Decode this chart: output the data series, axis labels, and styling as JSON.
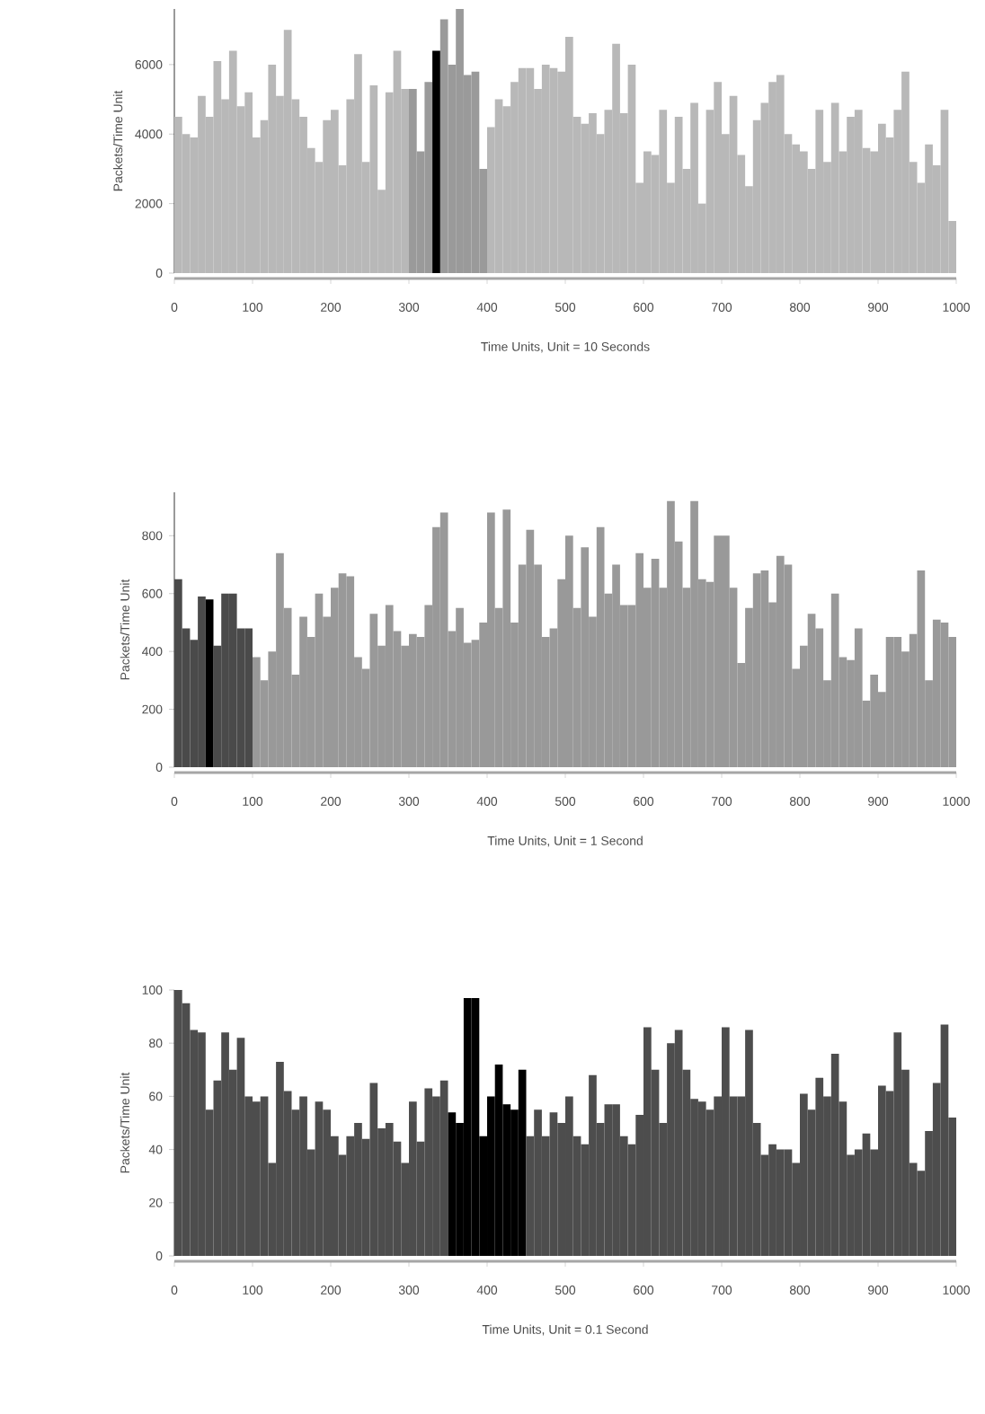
{
  "chart_data": [
    {
      "type": "bar",
      "xlabel": "Time Units, Unit = 10 Seconds",
      "ylabel": "Packets/Time Unit",
      "xlim": [
        0,
        1000
      ],
      "xticks": [
        0,
        100,
        200,
        300,
        400,
        500,
        600,
        700,
        800,
        900,
        1000
      ],
      "ylim": [
        0,
        7600
      ],
      "yticks": [
        0,
        2000,
        4000,
        6000
      ],
      "series": [
        {
          "color": "#b8b8b8",
          "x": [
            5,
            15,
            25,
            35,
            45,
            55,
            65,
            75,
            85,
            95,
            105,
            115,
            125,
            135,
            145,
            155,
            165,
            175,
            185,
            195,
            205,
            215,
            225,
            235,
            245,
            255,
            265,
            275,
            285,
            295
          ],
          "values": [
            4500,
            4000,
            3900,
            5100,
            4500,
            6100,
            5000,
            6400,
            4800,
            5200,
            3900,
            4400,
            6000,
            5100,
            7000,
            5000,
            4500,
            3600,
            3200,
            4400,
            4700,
            3100,
            5000,
            6300,
            3200,
            5400,
            2400,
            5200,
            6400,
            5300
          ]
        },
        {
          "color": "#9a9a9a",
          "x": [
            305,
            315,
            325,
            345,
            355,
            365,
            375,
            385,
            395
          ],
          "values": [
            5300,
            3500,
            5500,
            7300,
            6000,
            7600,
            5700,
            5800,
            3000
          ]
        },
        {
          "color": "#000000",
          "x": [
            335
          ],
          "values": [
            6400
          ]
        },
        {
          "color": "#b8b8b8",
          "x": [
            405,
            415,
            425,
            435,
            445,
            455,
            465,
            475,
            485,
            495,
            505,
            515,
            525,
            535,
            545,
            555,
            565,
            575,
            585,
            595,
            605,
            615,
            625,
            635,
            645,
            655,
            665,
            675,
            685,
            695,
            705,
            715,
            725,
            735,
            745,
            755,
            765,
            775,
            785,
            795,
            805,
            815,
            825,
            835,
            845,
            855,
            865,
            875,
            885,
            895,
            905,
            915,
            925,
            935,
            945,
            955,
            965,
            975,
            985,
            995
          ],
          "values": [
            4200,
            5000,
            4800,
            5500,
            5900,
            5900,
            5300,
            6000,
            5900,
            5800,
            6800,
            4500,
            4300,
            4600,
            4000,
            4700,
            6600,
            4600,
            6000,
            2600,
            3500,
            3400,
            4700,
            2600,
            4500,
            3000,
            4900,
            2000,
            4700,
            5500,
            4000,
            5100,
            3400,
            2500,
            4400,
            4900,
            5500,
            5700,
            4000,
            3700,
            3500,
            3000,
            4700,
            3200,
            4900,
            3500,
            4500,
            4700,
            3600,
            3500,
            4300,
            3900,
            4700,
            5800,
            3200,
            2600,
            3700,
            3100,
            4700,
            1500
          ]
        }
      ]
    },
    {
      "type": "bar",
      "xlabel": "Time Units, Unit = 1 Second",
      "ylabel": "Packets/Time Unit",
      "xlim": [
        0,
        1000
      ],
      "xticks": [
        0,
        100,
        200,
        300,
        400,
        500,
        600,
        700,
        800,
        900,
        1000
      ],
      "ylim": [
        0,
        950
      ],
      "yticks": [
        0,
        200,
        400,
        600,
        800
      ],
      "series": [
        {
          "color": "#4a4a4a",
          "x": [
            5,
            15,
            25,
            35,
            55,
            65,
            75,
            85,
            95
          ],
          "values": [
            650,
            480,
            440,
            590,
            420,
            600,
            600,
            480,
            480
          ]
        },
        {
          "color": "#000000",
          "x": [
            45
          ],
          "values": [
            580
          ]
        },
        {
          "color": "#999999",
          "x": [
            105,
            115,
            125,
            135,
            145,
            155,
            165,
            175,
            185,
            195,
            205,
            215,
            225,
            235,
            245,
            255,
            265,
            275,
            285,
            295,
            305,
            315,
            325,
            335,
            345,
            355,
            365,
            375,
            385,
            395,
            405,
            415,
            425,
            435,
            445,
            455,
            465,
            475,
            485,
            495,
            505,
            515,
            525,
            535,
            545,
            555,
            565,
            575,
            585,
            595,
            605,
            615,
            625,
            635,
            645,
            655,
            665,
            675,
            685,
            695,
            705,
            715,
            725,
            735,
            745,
            755,
            765,
            775,
            785,
            795,
            805,
            815,
            825,
            835,
            845,
            855,
            865,
            875,
            885,
            895,
            905,
            915,
            925,
            935,
            945,
            955,
            965,
            975,
            985,
            995
          ],
          "values": [
            380,
            300,
            400,
            740,
            550,
            320,
            520,
            450,
            600,
            520,
            620,
            670,
            660,
            380,
            340,
            530,
            420,
            560,
            470,
            420,
            460,
            450,
            560,
            830,
            880,
            470,
            550,
            430,
            440,
            500,
            880,
            550,
            890,
            500,
            700,
            820,
            700,
            450,
            480,
            650,
            800,
            550,
            760,
            520,
            830,
            600,
            700,
            560,
            560,
            740,
            620,
            720,
            620,
            920,
            780,
            620,
            920,
            650,
            640,
            800,
            800,
            620,
            360,
            550,
            670,
            680,
            570,
            730,
            700,
            340,
            420,
            530,
            480,
            300,
            600,
            380,
            370,
            480,
            230,
            320,
            260,
            450,
            450,
            400,
            460,
            680,
            300,
            510,
            500,
            450
          ]
        }
      ]
    },
    {
      "type": "bar",
      "xlabel": "Time Units, Unit = 0.1 Second",
      "ylabel": "Packets/Time Unit",
      "xlim": [
        0,
        1000
      ],
      "xticks": [
        0,
        100,
        200,
        300,
        400,
        500,
        600,
        700,
        800,
        900,
        1000
      ],
      "ylim": [
        0,
        100
      ],
      "yticks": [
        0,
        20,
        40,
        60,
        80,
        100
      ],
      "series": [
        {
          "color": "#4d4d4d",
          "x": [
            5,
            15,
            25,
            35,
            45,
            55,
            65,
            75,
            85,
            95,
            105,
            115,
            125,
            135,
            145,
            155,
            165,
            175,
            185,
            195,
            205,
            215,
            225,
            235,
            245,
            255,
            265,
            275,
            285,
            295,
            305,
            315,
            325,
            335,
            345
          ],
          "values": [
            100,
            95,
            85,
            84,
            55,
            66,
            84,
            70,
            82,
            60,
            58,
            60,
            35,
            73,
            62,
            55,
            60,
            40,
            58,
            55,
            45,
            38,
            45,
            50,
            44,
            65,
            48,
            50,
            43,
            35,
            58,
            43,
            63,
            60,
            66
          ]
        },
        {
          "color": "#000000",
          "x": [
            355,
            365,
            375,
            385,
            395,
            405,
            415,
            425,
            435,
            445
          ],
          "values": [
            54,
            50,
            97,
            97,
            45,
            60,
            72,
            57,
            55,
            70
          ]
        },
        {
          "color": "#4d4d4d",
          "x": [
            455,
            465,
            475,
            485,
            495,
            505,
            515,
            525,
            535,
            545,
            555,
            565,
            575,
            585,
            595,
            605,
            615,
            625,
            635,
            645,
            655,
            665,
            675,
            685,
            695,
            705,
            715,
            725,
            735,
            745,
            755,
            765,
            775,
            785,
            795,
            805,
            815,
            825,
            835,
            845,
            855,
            865,
            875,
            885,
            895,
            905,
            915,
            925,
            935,
            945,
            955,
            965,
            975,
            985,
            995
          ],
          "values": [
            45,
            55,
            45,
            54,
            50,
            60,
            45,
            42,
            68,
            50,
            57,
            57,
            45,
            42,
            53,
            86,
            70,
            50,
            80,
            85,
            70,
            59,
            58,
            55,
            60,
            86,
            60,
            60,
            85,
            50,
            38,
            42,
            40,
            40,
            35,
            61,
            55,
            67,
            60,
            76,
            58,
            38,
            40,
            46,
            40,
            64,
            62,
            84,
            70,
            35,
            32,
            47,
            65,
            87,
            52
          ]
        }
      ]
    }
  ]
}
